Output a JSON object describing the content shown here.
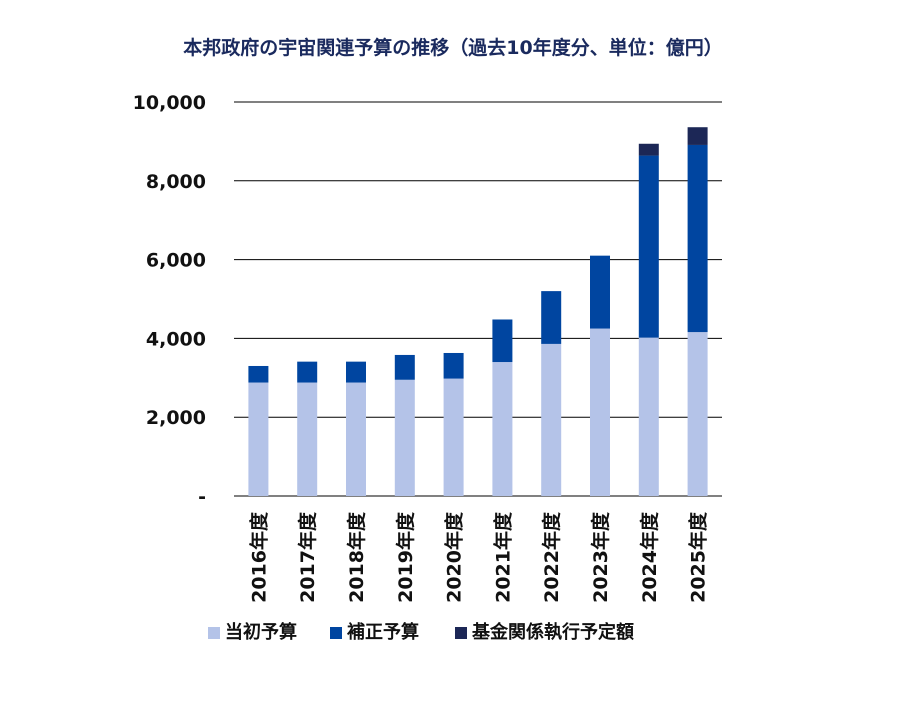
{
  "chart_data": {
    "type": "bar",
    "stacked": true,
    "title": "本邦政府の宇宙関連予算の推移（過去10年度分、単位：億円）",
    "xlabel": "",
    "ylabel": "",
    "ylim": [
      0,
      10000
    ],
    "yticks": [
      0,
      2000,
      4000,
      6000,
      8000,
      10000
    ],
    "ytick_labels": [
      "-",
      "2,000",
      "4,000",
      "6,000",
      "8,000",
      "10,000"
    ],
    "grid": true,
    "legend_position": "bottom",
    "categories": [
      "2016年度",
      "2017年度",
      "2018年度",
      "2019年度",
      "2020年度",
      "2021年度",
      "2022年度",
      "2023年度",
      "2024年度",
      "2025年度"
    ],
    "series": [
      {
        "name": "当初予算",
        "color": "#b4c3e8",
        "values": [
          2880,
          2880,
          2880,
          2950,
          2980,
          3400,
          3860,
          4250,
          4020,
          4160
        ]
      },
      {
        "name": "補正予算",
        "color": "#0045a0",
        "values": [
          420,
          530,
          530,
          630,
          650,
          1080,
          1340,
          1850,
          4620,
          4750
        ]
      },
      {
        "name": "基金関係執行予定額",
        "color": "#1c2756",
        "values": [
          0,
          0,
          0,
          0,
          0,
          0,
          0,
          0,
          300,
          450
        ]
      }
    ]
  }
}
